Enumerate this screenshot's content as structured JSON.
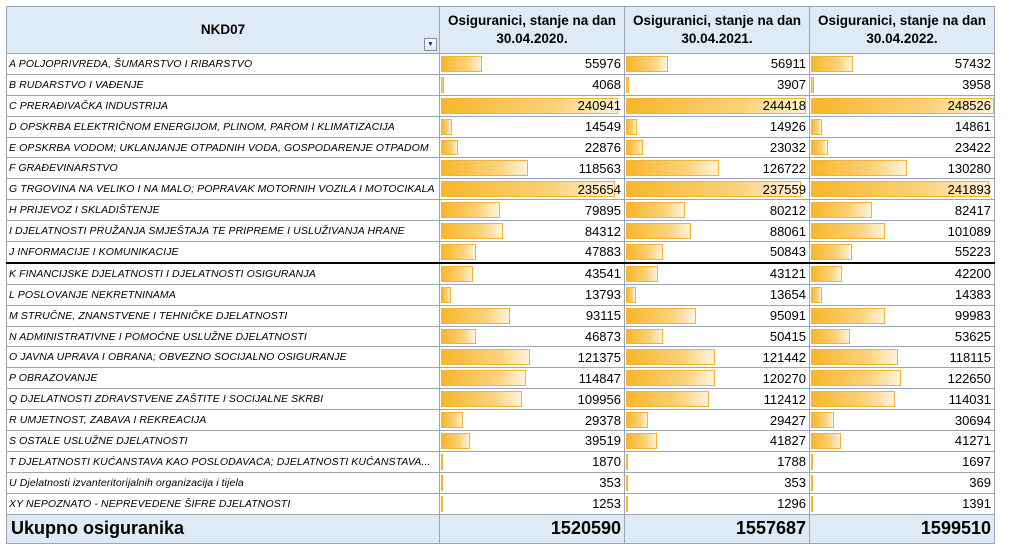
{
  "table": {
    "header": {
      "nkd_label": "NKD07",
      "columns": [
        [
          "Osiguranici, stanje na dan",
          "30.04.2020."
        ],
        [
          "Osiguranici, stanje na dan",
          "30.04.2021."
        ],
        [
          "Osiguranici, stanje na dan",
          "30.04.2022."
        ]
      ],
      "filter_icon": "dropdown-filter-icon"
    },
    "bar_max": 248526,
    "bar_color": "#f8b62a",
    "header_bg": "#deebf7",
    "rows": [
      {
        "name": "A POLJOPRIVREDA, ŠUMARSTVO I RIBARSTVO",
        "values": [
          55976,
          56911,
          57432
        ]
      },
      {
        "name": "B RUDARSTVO I VAĐENJE",
        "values": [
          4068,
          3907,
          3958
        ]
      },
      {
        "name": "C PRERAĐIVAČKA INDUSTRIJA",
        "values": [
          240941,
          244418,
          248526
        ]
      },
      {
        "name": "D OPSKRBA ELEKTRIČNOM ENERGIJOM, PLINOM, PAROM I KLIMATIZACIJA",
        "values": [
          14549,
          14926,
          14861
        ]
      },
      {
        "name": "E OPSKRBA VODOM; UKLANJANJE OTPADNIH VODA, GOSPODARENJE OTPADOM",
        "values": [
          22876,
          23032,
          23422
        ]
      },
      {
        "name": "F GRAĐEVINARSTVO",
        "values": [
          118563,
          126722,
          130280
        ]
      },
      {
        "name": "G TRGOVINA NA VELIKO I NA MALO; POPRAVAK MOTORNIH VOZILA I MOTOCIKALA",
        "values": [
          235654,
          237559,
          241893
        ]
      },
      {
        "name": "H PRIJEVOZ I SKLADIŠTENJE",
        "values": [
          79895,
          80212,
          82417
        ]
      },
      {
        "name": "I DJELATNOSTI PRUŽANJA SMJEŠTAJA TE PRIPREME I USLUŽIVANJA HRANE",
        "values": [
          84312,
          88061,
          101089
        ]
      },
      {
        "name": "J INFORMACIJE I KOMUNIKACIJE",
        "values": [
          47883,
          50843,
          55223
        ]
      },
      {
        "name": "K FINANCIJSKE DJELATNOSTI I DJELATNOSTI OSIGURANJA",
        "values": [
          43541,
          43121,
          42200
        ]
      },
      {
        "name": "L POSLOVANJE NEKRETNINAMA",
        "values": [
          13793,
          13654,
          14383
        ]
      },
      {
        "name": "M STRUČNE, ZNANSTVENE I TEHNIČKE DJELATNOSTI",
        "values": [
          93115,
          95091,
          99983
        ]
      },
      {
        "name": "N ADMINISTRATIVNE I POMOĆNE USLUŽNE DJELATNOSTI",
        "values": [
          46873,
          50415,
          53625
        ]
      },
      {
        "name": "O JAVNA UPRAVA I OBRANA; OBVEZNO SOCIJALNO OSIGURANJE",
        "values": [
          121375,
          121442,
          118115
        ]
      },
      {
        "name": "P OBRAZOVANJE",
        "values": [
          114847,
          120270,
          122650
        ]
      },
      {
        "name": "Q DJELATNOSTI ZDRAVSTVENE ZAŠTITE I SOCIJALNE SKRBI",
        "values": [
          109956,
          112412,
          114031
        ]
      },
      {
        "name": "R UMJETNOST, ZABAVA I REKREACIJA",
        "values": [
          29378,
          29427,
          30694
        ]
      },
      {
        "name": "S OSTALE USLUŽNE DJELATNOSTI",
        "values": [
          39519,
          41827,
          41271
        ]
      },
      {
        "name": "T DJELATNOSTI KUĆANSTAVA KAO POSLODAVACA; DJELATNOSTI KUĆANSTAVA...",
        "values": [
          1870,
          1788,
          1697
        ]
      },
      {
        "name": "U Djelatnosti izvanteritorijalnih organizacija i tijela",
        "values": [
          353,
          353,
          369
        ]
      },
      {
        "name": "XY NEPOZNATO - NEPREVEDENE ŠIFRE DJELATNOSTI",
        "values": [
          1253,
          1296,
          1391
        ]
      }
    ],
    "footer": {
      "label": "Ukupno osiguranika",
      "totals": [
        1520590,
        1557687,
        1599510
      ]
    }
  }
}
